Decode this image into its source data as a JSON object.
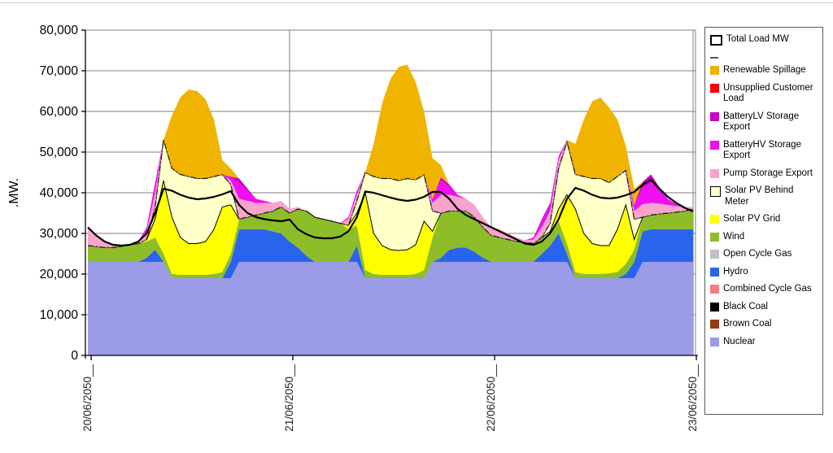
{
  "y_axis": {
    "label": ".MW.",
    "min": 0,
    "max": 80000,
    "step": 10000,
    "tick_labels": [
      "0",
      "10,000",
      "20,000",
      "30,000",
      "40,000",
      "50,000",
      "60,000",
      "70,000",
      "80,000"
    ]
  },
  "x_axis": {
    "tick_hours": [
      0,
      24,
      48,
      72
    ],
    "tick_labels": [
      "20/06/2050__",
      "21/06/2050__",
      "22/06/2050__",
      "23/06/2050__"
    ]
  },
  "legend": {
    "items": [
      {
        "label": "Total Load MW",
        "swatch": "line-box",
        "color": "#ffffff",
        "border": "#000000"
      },
      {
        "label": "",
        "swatch": "dash",
        "color": "#555555"
      },
      {
        "label": "Renewable Spillage",
        "swatch": "box",
        "color": "#F0B400"
      },
      {
        "label": "Unsupplied Customer Load",
        "swatch": "box",
        "color": "#FE0000"
      },
      {
        "label": "BatteryLV Storage Export",
        "swatch": "box",
        "color": "#C400C4"
      },
      {
        "label": "BatteryHV Storage Export",
        "swatch": "box",
        "color": "#F00FF0"
      },
      {
        "label": "Pump Storage Export",
        "swatch": "box",
        "color": "#F7A3CB"
      },
      {
        "label": "Solar PV Behind Meter",
        "swatch": "box",
        "color": "#FFFFC8",
        "border": "#000000"
      },
      {
        "label": "Solar PV Grid",
        "swatch": "box",
        "color": "#FFFF00"
      },
      {
        "label": "Wind",
        "swatch": "box",
        "color": "#8DBE29"
      },
      {
        "label": "Open Cycle Gas",
        "swatch": "box",
        "color": "#C0C0C0"
      },
      {
        "label": "Hydro",
        "swatch": "box",
        "color": "#2A64EE"
      },
      {
        "label": "Combined Cycle Gas",
        "swatch": "box",
        "color": "#F47E7E"
      },
      {
        "label": "Black Coal",
        "swatch": "box",
        "color": "#000000"
      },
      {
        "label": "Brown Coal",
        "swatch": "box",
        "color": "#953A12"
      },
      {
        "label": "Nuclear",
        "swatch": "box",
        "color": "#9B9BE8"
      }
    ]
  },
  "chart_data": {
    "type": "area",
    "subtype": "stacked",
    "title": "",
    "xlabel": "",
    "ylabel": ".MW.",
    "ylim": [
      0,
      80000
    ],
    "x_hours_from_20_06_2050": [
      0,
      1,
      2,
      3,
      4,
      5,
      6,
      7,
      8,
      9,
      10,
      11,
      12,
      13,
      14,
      15,
      16,
      17,
      18,
      19,
      20,
      21,
      22,
      23,
      24,
      25,
      26,
      27,
      28,
      29,
      30,
      31,
      32,
      33,
      34,
      35,
      36,
      37,
      38,
      39,
      40,
      41,
      42,
      43,
      44,
      45,
      46,
      47,
      48,
      49,
      50,
      51,
      52,
      53,
      54,
      55,
      56,
      57,
      58,
      59,
      60,
      61,
      62,
      63,
      64,
      65,
      66,
      67,
      68,
      69,
      70,
      71,
      72
    ],
    "zero_series": [
      "Brown Coal",
      "Black Coal",
      "Combined Cycle Gas",
      "Open Cycle Gas",
      "Unsupplied Customer Load"
    ],
    "series": [
      {
        "name": "Nuclear",
        "color": "#9B9BE8",
        "values": [
          23000,
          23000,
          23000,
          23000,
          23000,
          23000,
          23000,
          23000,
          23000,
          23000,
          19000,
          19000,
          19000,
          19000,
          19000,
          19000,
          19000,
          19000,
          23000,
          23000,
          23000,
          23000,
          23000,
          23000,
          23000,
          23000,
          23000,
          23000,
          23000,
          23000,
          23000,
          23000,
          23000,
          19000,
          19000,
          19000,
          19000,
          19000,
          19000,
          19000,
          19000,
          23000,
          23000,
          23000,
          23000,
          23000,
          23000,
          23000,
          23000,
          23000,
          23000,
          23000,
          23000,
          23000,
          23000,
          23000,
          23000,
          23000,
          19000,
          19000,
          19000,
          19000,
          19000,
          19000,
          19000,
          19000,
          23000,
          23000,
          23000,
          23000,
          23000,
          23000,
          23000
        ]
      },
      {
        "name": "Hydro",
        "color": "#2A64EE",
        "values": [
          0,
          0,
          0,
          0,
          0,
          0,
          0,
          1000,
          3000,
          0,
          0,
          0,
          0,
          0,
          0,
          0,
          0,
          4000,
          8000,
          8000,
          8000,
          8000,
          7500,
          7000,
          5000,
          3500,
          1500,
          0,
          0,
          0,
          0,
          0,
          4000,
          0,
          0,
          0,
          0,
          0,
          0,
          0,
          0,
          0,
          1000,
          3000,
          3500,
          3500,
          2500,
          1000,
          0,
          0,
          0,
          0,
          0,
          0,
          2000,
          4000,
          7000,
          2000,
          0,
          0,
          0,
          0,
          0,
          0,
          1000,
          4000,
          7500,
          8000,
          8000,
          8000,
          8000,
          8000,
          8000
        ]
      },
      {
        "name": "Wind",
        "color": "#8DBE29",
        "values": [
          4000,
          3800,
          3500,
          3500,
          3800,
          4200,
          4500,
          4000,
          3000,
          2000,
          1000,
          800,
          800,
          800,
          800,
          1000,
          1500,
          2000,
          2500,
          3000,
          3500,
          4000,
          5000,
          6500,
          7000,
          9500,
          11000,
          11000,
          10500,
          10000,
          9500,
          8000,
          5000,
          2000,
          1000,
          800,
          800,
          800,
          800,
          1000,
          2000,
          6000,
          11000,
          9500,
          9000,
          9000,
          8500,
          7500,
          6500,
          6000,
          5500,
          5000,
          4800,
          4500,
          4000,
          3000,
          3000,
          2500,
          1500,
          1000,
          1000,
          1000,
          1200,
          1500,
          2500,
          3000,
          3500,
          3500,
          3800,
          4000,
          4200,
          4500,
          5000
        ]
      },
      {
        "name": "Solar PV Grid",
        "color": "#FFFF00",
        "values": [
          0,
          0,
          0,
          0,
          0,
          0,
          0,
          500,
          4500,
          18000,
          14000,
          9200,
          7700,
          7700,
          8200,
          11000,
          16000,
          12000,
          0,
          0,
          0,
          0,
          0,
          0,
          0,
          0,
          0,
          0,
          0,
          0,
          0,
          1000,
          3000,
          19000,
          10000,
          7200,
          6200,
          6000,
          6200,
          7200,
          12000,
          1500,
          0,
          0,
          0,
          0,
          0,
          0,
          0,
          0,
          0,
          0,
          0,
          0,
          0,
          500,
          3000,
          12000,
          15500,
          10000,
          7500,
          7000,
          6800,
          10500,
          14500,
          2500,
          0,
          0,
          0,
          0,
          0,
          0,
          0
        ]
      },
      {
        "name": "Solar PV Behind Meter",
        "color": "#FFFFC8",
        "outline": "#000000",
        "values": [
          0,
          0,
          0,
          0,
          0,
          0,
          0,
          0,
          3000,
          10000,
          12000,
          15500,
          16500,
          16000,
          15500,
          13000,
          8000,
          5000,
          0,
          0,
          0,
          0,
          0,
          0,
          0,
          0,
          0,
          0,
          0,
          0,
          0,
          0,
          3000,
          5000,
          14000,
          16500,
          17500,
          17200,
          17500,
          16000,
          11400,
          5000,
          0,
          0,
          0,
          0,
          0,
          0,
          0,
          0,
          0,
          0,
          0,
          0,
          0,
          2000,
          10000,
          13000,
          8500,
          14000,
          16000,
          16500,
          15500,
          13000,
          8500,
          5000,
          0,
          0,
          0,
          0,
          0,
          0,
          0
        ]
      },
      {
        "name": "Pump Storage Export",
        "color": "#F7A3CB",
        "values": [
          4500,
          3000,
          1500,
          500,
          0,
          0,
          500,
          2000,
          3500,
          0,
          0,
          0,
          0,
          0,
          0,
          0,
          0,
          1000,
          5000,
          4000,
          3000,
          2500,
          2000,
          1500,
          1000,
          500,
          0,
          0,
          0,
          0,
          0,
          1500,
          1500,
          0,
          0,
          0,
          0,
          0,
          0,
          0,
          0,
          2000,
          4500,
          4000,
          3500,
          3000,
          3000,
          2500,
          2000,
          2000,
          1500,
          1000,
          500,
          1000,
          2500,
          3000,
          2000,
          500,
          0,
          0,
          0,
          0,
          0,
          0,
          500,
          2000,
          3200,
          3000,
          2500,
          2000,
          1500,
          1000,
          500
        ]
      },
      {
        "name": "BatteryHV Storage Export",
        "color": "#F00FF0",
        "values": [
          0,
          0,
          0,
          0,
          0,
          0,
          0,
          1000,
          2500,
          0,
          0,
          0,
          0,
          0,
          0,
          0,
          0,
          1000,
          4000,
          2500,
          1000,
          500,
          0,
          0,
          0,
          0,
          0,
          0,
          0,
          0,
          0,
          500,
          1000,
          0,
          0,
          0,
          0,
          0,
          0,
          0,
          0,
          1000,
          3500,
          2000,
          500,
          0,
          0,
          0,
          0,
          0,
          0,
          0,
          0,
          500,
          1500,
          1500,
          1000,
          0,
          0,
          0,
          0,
          0,
          0,
          0,
          0,
          1500,
          4000,
          5000,
          3000,
          1500,
          500,
          0,
          0
        ]
      },
      {
        "name": "BatteryLV Storage Export",
        "color": "#C400C4",
        "values": [
          0,
          0,
          0,
          0,
          0,
          0,
          0,
          0,
          0,
          0,
          0,
          0,
          0,
          0,
          0,
          0,
          0,
          0,
          1000,
          500,
          0,
          0,
          0,
          0,
          0,
          0,
          0,
          0,
          0,
          0,
          0,
          0,
          0,
          0,
          0,
          0,
          0,
          0,
          0,
          0,
          0,
          0,
          800,
          500,
          0,
          0,
          0,
          0,
          0,
          0,
          0,
          0,
          0,
          0,
          500,
          500,
          0,
          0,
          0,
          0,
          0,
          0,
          0,
          0,
          0,
          0,
          1500,
          2000,
          1000,
          0,
          0,
          0,
          0
        ]
      },
      {
        "name": "Renewable Spillage",
        "color": "#F0B400",
        "values": [
          0,
          0,
          0,
          0,
          0,
          0,
          0,
          0,
          0,
          0,
          13000,
          19000,
          21400,
          21500,
          19500,
          14000,
          3500,
          2000,
          0,
          0,
          0,
          0,
          0,
          0,
          0,
          0,
          0,
          0,
          0,
          0,
          0,
          0,
          0,
          0,
          8000,
          18500,
          24500,
          28000,
          28000,
          24000,
          15600,
          10000,
          3000,
          0,
          0,
          0,
          0,
          0,
          0,
          0,
          0,
          0,
          0,
          0,
          0,
          0,
          0,
          0,
          7500,
          14000,
          19000,
          19900,
          18500,
          14000,
          5500,
          4000,
          0,
          0,
          0,
          0,
          0,
          0,
          0
        ]
      }
    ],
    "line_series": [
      {
        "name": "Total Load MW",
        "color": "#000000",
        "style": "solid",
        "width": 2,
        "values": [
          31500,
          29500,
          28000,
          27200,
          27000,
          27200,
          28000,
          30000,
          35000,
          41000,
          40500,
          39500,
          38800,
          38400,
          38600,
          39000,
          39600,
          40400,
          37000,
          35000,
          34000,
          33500,
          33200,
          33000,
          33400,
          31000,
          29800,
          29000,
          28800,
          28800,
          29200,
          30500,
          34000,
          40300,
          40000,
          39400,
          38800,
          38300,
          38000,
          38300,
          39000,
          40200,
          40200,
          38500,
          36000,
          34500,
          33500,
          32500,
          31500,
          30500,
          29500,
          28500,
          27500,
          27200,
          28000,
          30000,
          33500,
          38500,
          41200,
          40500,
          39500,
          38800,
          38600,
          38800,
          39400,
          40200,
          42000,
          43200,
          41000,
          39000,
          37500,
          36300,
          35400
        ]
      },
      {
        "name": "",
        "color": "#1a1a1a",
        "style": "dash-dot",
        "width": 1,
        "derived": "stack_top_after_Solar PV Behind Meter"
      }
    ],
    "legend_position": "right",
    "grid": true
  }
}
